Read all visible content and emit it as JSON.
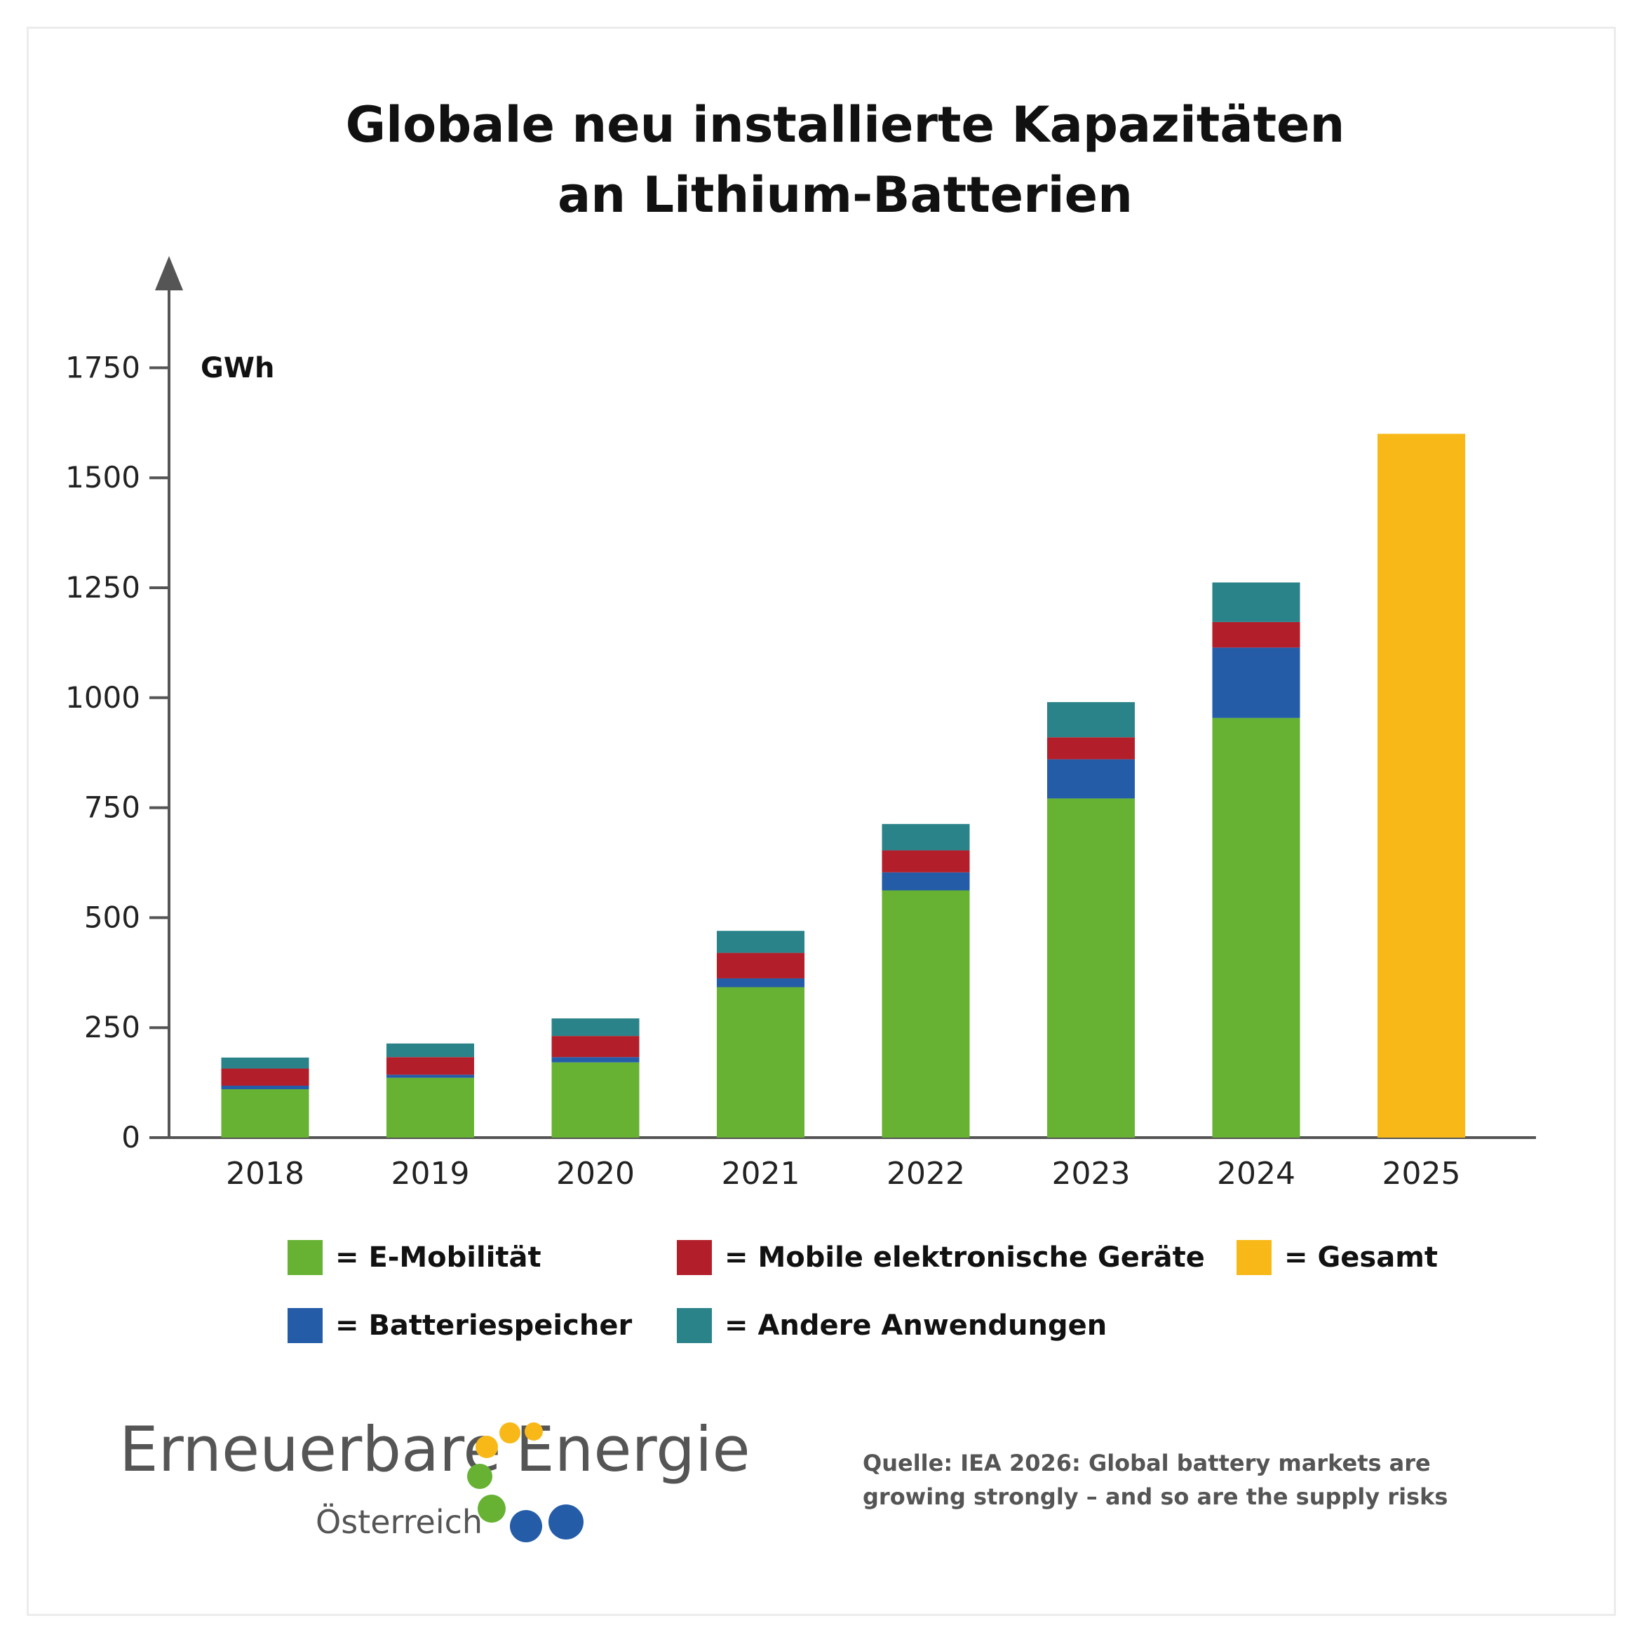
{
  "chart_data": {
    "type": "bar",
    "stacked": true,
    "title": "Globale neu installierte Kapazitäten\nan Lithium-Batterien",
    "ylabel": "GWh",
    "ylim": [
      0,
      1900
    ],
    "yticks": [
      0,
      250,
      500,
      750,
      1000,
      1250,
      1500,
      1750
    ],
    "categories": [
      "2018",
      "2019",
      "2020",
      "2021",
      "2022",
      "2023",
      "2024",
      "2025"
    ],
    "series": [
      {
        "name": "E-Mobilität",
        "color": "#67b233",
        "values": [
          110,
          136,
          171,
          342,
          562,
          771,
          954,
          0
        ]
      },
      {
        "name": "Batteriespeicher",
        "color": "#245ca8",
        "values": [
          8,
          7,
          12,
          20,
          41,
          89,
          160,
          0
        ]
      },
      {
        "name": "Mobile elektronische Geräte",
        "color": "#b21f2a",
        "values": [
          39,
          40,
          48,
          58,
          50,
          50,
          58,
          0
        ]
      },
      {
        "name": "Andere Anwendungen",
        "color": "#2b838a",
        "values": [
          25,
          31,
          40,
          50,
          60,
          80,
          90,
          0
        ]
      },
      {
        "name": "Gesamt",
        "color": "#f8b918",
        "values": [
          0,
          0,
          0,
          0,
          0,
          0,
          0,
          1600
        ]
      }
    ],
    "legend_position": "bottom",
    "grid": false
  },
  "legend": [
    {
      "label": "= E-Mobilität",
      "color": "#67b233"
    },
    {
      "label": "= Mobile elektronische Geräte",
      "color": "#b21f2a"
    },
    {
      "label": "= Gesamt",
      "color": "#f8b918"
    },
    {
      "label": "= Batteriespeicher",
      "color": "#245ca8"
    },
    {
      "label": "= Andere Anwendungen",
      "color": "#2b838a"
    }
  ],
  "logo": {
    "word1": "Erneuerbare",
    "word2": "Energie",
    "sub": "Österreich",
    "colors": {
      "yellow": "#f8b918",
      "green": "#67b233",
      "blue": "#245ca8"
    }
  },
  "source": "Quelle: IEA 2026: Global battery markets are\ngrowing strongly – and so are the supply risks"
}
